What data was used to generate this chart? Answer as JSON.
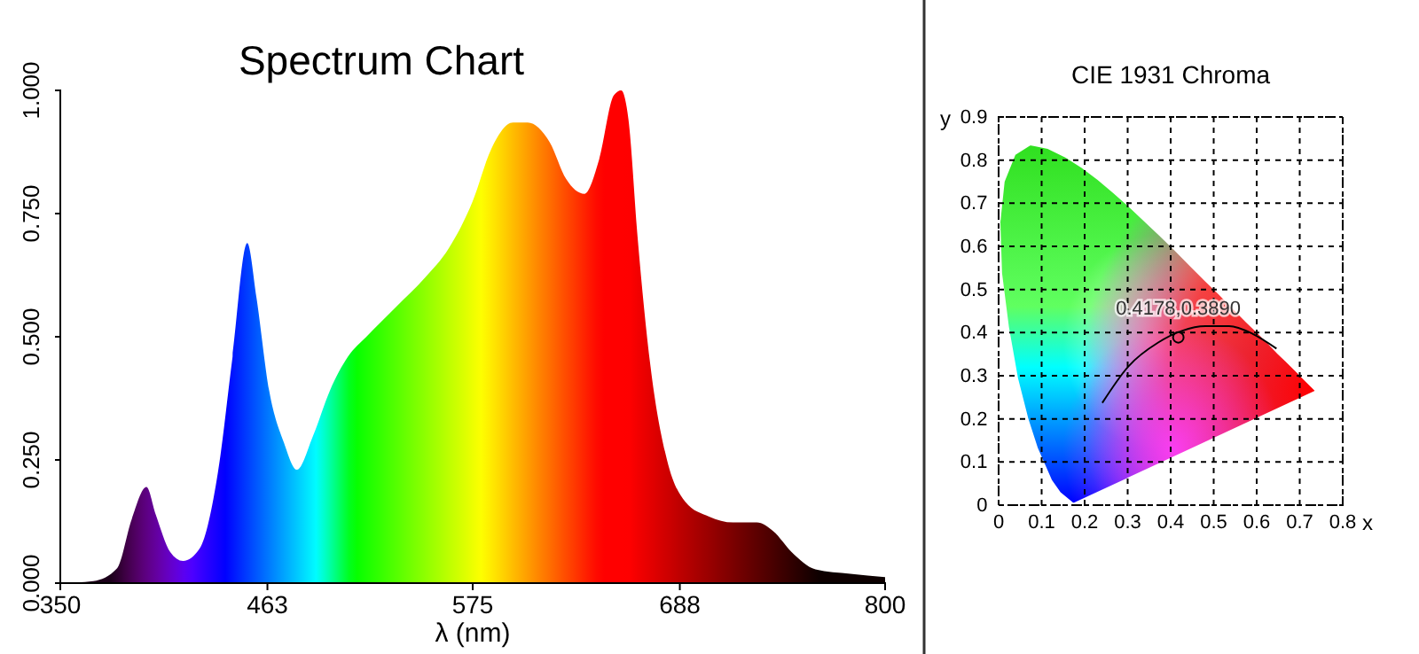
{
  "chart_data": [
    {
      "type": "area",
      "title": "Spectrum Chart",
      "xlabel": "λ (nm)",
      "xlim": [
        350,
        800
      ],
      "ylim": [
        0,
        1
      ],
      "xticks": [
        350,
        463,
        575,
        688,
        800
      ],
      "yticks": [
        {
          "value": 0,
          "label": "0.000"
        },
        {
          "value": 0.25,
          "label": "0.250"
        },
        {
          "value": 0.5,
          "label": "0.500"
        },
        {
          "value": 0.75,
          "label": "0.750"
        },
        {
          "value": 1,
          "label": "1.000"
        }
      ],
      "grid": false,
      "x": [
        350,
        368,
        381,
        389,
        397,
        402,
        410,
        417,
        426,
        436,
        444,
        452,
        457,
        464,
        472,
        479,
        488,
        497,
        507,
        517,
        533,
        549,
        562,
        575,
        585,
        597,
        605,
        617,
        626,
        636,
        644,
        652,
        656,
        660,
        665,
        672,
        681,
        691,
        704,
        717,
        730,
        739,
        749,
        762,
        781,
        800
      ],
      "values": [
        0,
        0.004,
        0.03,
        0.13,
        0.195,
        0.14,
        0.063,
        0.045,
        0.07,
        0.225,
        0.46,
        0.69,
        0.58,
        0.39,
        0.285,
        0.23,
        0.3,
        0.39,
        0.46,
        0.5,
        0.56,
        0.62,
        0.68,
        0.775,
        0.88,
        0.935,
        0.935,
        0.895,
        0.82,
        0.79,
        0.86,
        0.99,
        1,
        0.94,
        0.7,
        0.44,
        0.25,
        0.165,
        0.135,
        0.123,
        0.123,
        0.105,
        0.063,
        0.028,
        0.019,
        0.012
      ]
    },
    {
      "type": "scatter",
      "title": "CIE 1931 Chroma",
      "xlabel": "x",
      "ylabel": "y",
      "xlim": [
        0,
        0.8
      ],
      "ylim": [
        0,
        0.9
      ],
      "xticks": [
        0,
        0.1,
        0.2,
        0.3,
        0.4,
        0.5,
        0.6,
        0.7,
        0.8
      ],
      "yticks": [
        0,
        0.1,
        0.2,
        0.3,
        0.4,
        0.5,
        0.6,
        0.7,
        0.8,
        0.9
      ],
      "grid": true,
      "series": [
        {
          "type": "area",
          "x": [
            0.174,
            0.144,
            0.124,
            0.091,
            0.069,
            0.045,
            0.024,
            0.008,
            0.004,
            0.014,
            0.039,
            0.074,
            0.114,
            0.155,
            0.193,
            0.23,
            0.266,
            0.302,
            0.337,
            0.373,
            0.409,
            0.444,
            0.479,
            0.513,
            0.545,
            0.575,
            0.603,
            0.627,
            0.648,
            0.666,
            0.692,
            0.708,
            0.735,
            0.174
          ],
          "values": [
            0.005,
            0.03,
            0.058,
            0.133,
            0.201,
            0.295,
            0.413,
            0.538,
            0.655,
            0.75,
            0.812,
            0.834,
            0.826,
            0.806,
            0.782,
            0.754,
            0.724,
            0.692,
            0.659,
            0.625,
            0.59,
            0.555,
            0.52,
            0.487,
            0.454,
            0.424,
            0.397,
            0.373,
            0.351,
            0.334,
            0.308,
            0.292,
            0.265,
            0.005
          ]
        },
        {
          "type": "line",
          "color": "#000000",
          "x": [
            0.241,
            0.302,
            0.371,
            0.426,
            0.481,
            0.536,
            0.591,
            0.646
          ],
          "values": [
            0.237,
            0.322,
            0.377,
            0.404,
            0.415,
            0.415,
            0.397,
            0.363
          ]
        },
        {
          "type": "scatter",
          "color": "#000000",
          "marker": "circle",
          "x": [
            0.4178
          ],
          "values": [
            0.389
          ]
        }
      ],
      "annotations": [
        {
          "text": "0.4178,0.3890",
          "x": 0.4178,
          "y": 0.389
        }
      ]
    }
  ]
}
